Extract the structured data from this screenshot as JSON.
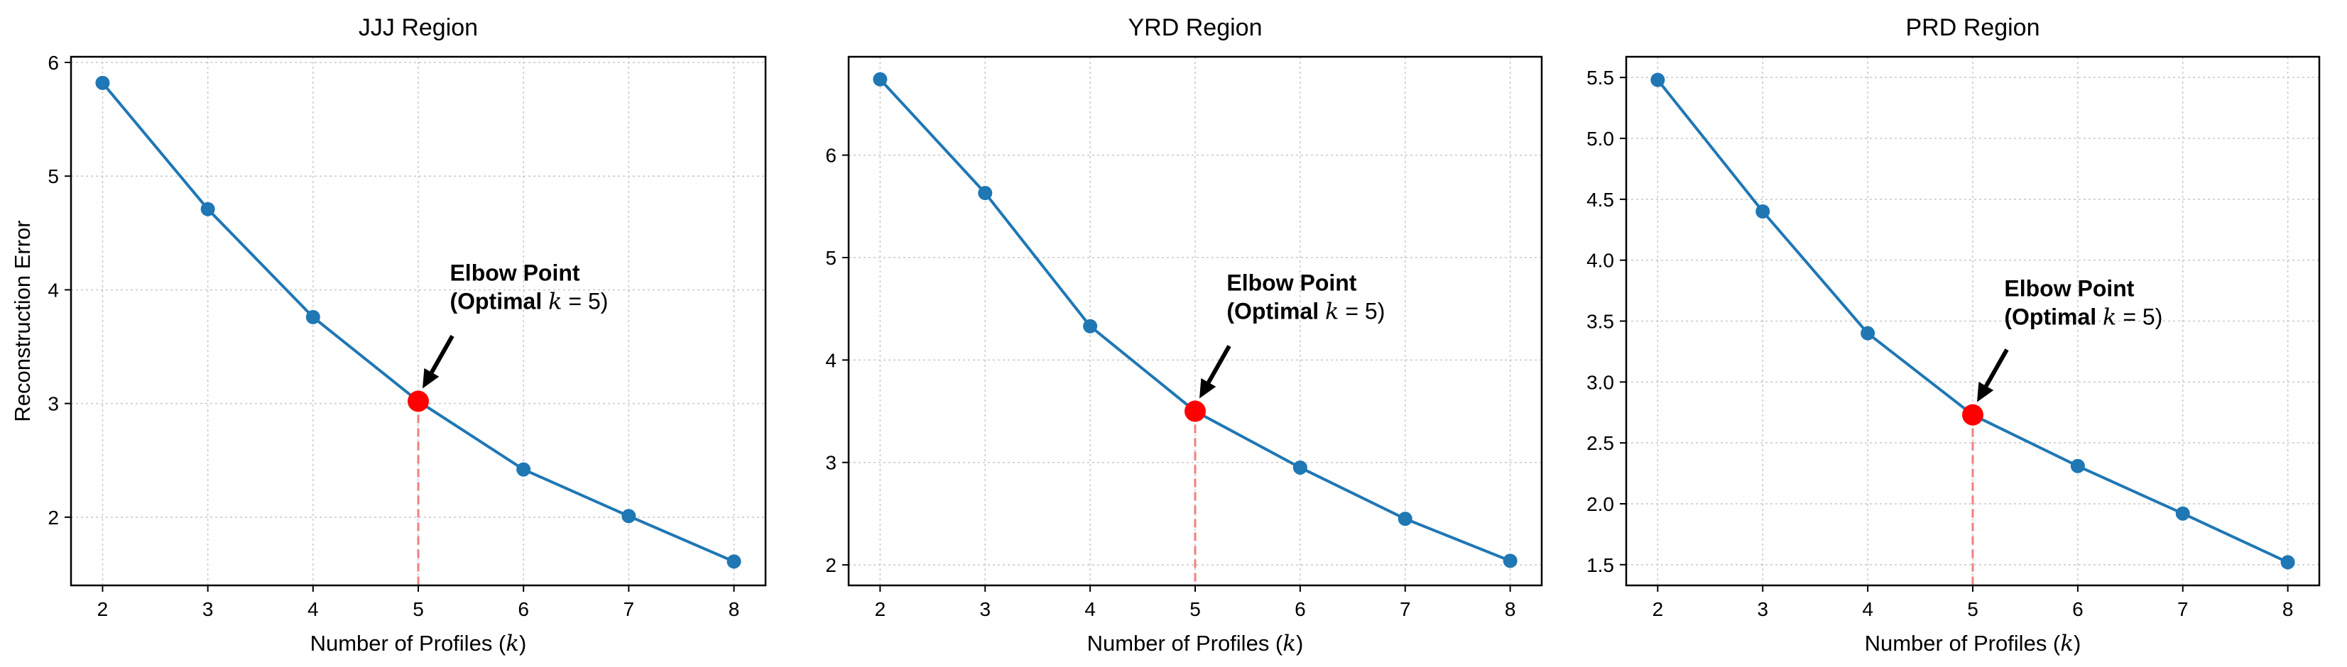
{
  "chart_data": [
    {
      "type": "line",
      "title": "JJJ Region",
      "xlabel_text": "Number of Profiles (",
      "xlabel_var": "k",
      "xlabel_close": ")",
      "ylabel": "Reconstruction Error",
      "x": [
        2,
        3,
        4,
        5,
        6,
        7,
        8
      ],
      "y": [
        5.82,
        4.71,
        3.76,
        3.02,
        2.42,
        2.01,
        1.61
      ],
      "xlim": [
        1.7,
        8.3
      ],
      "ylim": [
        1.4,
        6.05
      ],
      "yticks": [
        2,
        3,
        4,
        5,
        6
      ],
      "ytick_labels": [
        "2",
        "3",
        "4",
        "5",
        "6"
      ],
      "xticks": [
        2,
        3,
        4,
        5,
        6,
        7,
        8
      ],
      "xtick_labels": [
        "2",
        "3",
        "4",
        "5",
        "6",
        "7",
        "8"
      ],
      "elbow": {
        "x": 5,
        "y": 3.02
      },
      "annotation": {
        "line1": "Elbow Point",
        "line2_text": "(Optimal ",
        "line2_var": "k",
        "line2_eq": " = 5)",
        "text_x": 5.3,
        "text_y": 3.83
      },
      "grid": true
    },
    {
      "type": "line",
      "title": "YRD Region",
      "xlabel_text": "Number of Profiles (",
      "xlabel_var": "k",
      "xlabel_close": ")",
      "ylabel": "",
      "x": [
        2,
        3,
        4,
        5,
        6,
        7,
        8
      ],
      "y": [
        6.74,
        5.63,
        4.33,
        3.5,
        2.95,
        2.45,
        2.04
      ],
      "xlim": [
        1.7,
        8.3
      ],
      "ylim": [
        1.8,
        6.96
      ],
      "yticks": [
        2,
        3,
        4,
        5,
        6
      ],
      "ytick_labels": [
        "2",
        "3",
        "4",
        "5",
        "6"
      ],
      "xticks": [
        2,
        3,
        4,
        5,
        6,
        7,
        8
      ],
      "xtick_labels": [
        "2",
        "3",
        "4",
        "5",
        "6",
        "7",
        "8"
      ],
      "elbow": {
        "x": 5,
        "y": 3.5
      },
      "annotation": {
        "line1": "Elbow Point",
        "line2_text": "(Optimal ",
        "line2_var": "k",
        "line2_eq": " = 5)",
        "text_x": 5.3,
        "text_y": 4.4
      },
      "grid": true
    },
    {
      "type": "line",
      "title": "PRD Region",
      "xlabel_text": "Number of Profiles (",
      "xlabel_var": "k",
      "xlabel_close": ")",
      "ylabel": "",
      "x": [
        2,
        3,
        4,
        5,
        6,
        7,
        8
      ],
      "y": [
        5.48,
        4.4,
        3.4,
        2.73,
        2.31,
        1.92,
        1.52
      ],
      "xlim": [
        1.7,
        8.3
      ],
      "ylim": [
        1.33,
        5.67
      ],
      "yticks": [
        1.5,
        2.0,
        2.5,
        3.0,
        3.5,
        4.0,
        4.5,
        5.0,
        5.5
      ],
      "ytick_labels": [
        "1.5",
        "2.0",
        "2.5",
        "3.0",
        "3.5",
        "4.0",
        "4.5",
        "5.0",
        "5.5"
      ],
      "xticks": [
        2,
        3,
        4,
        5,
        6,
        7,
        8
      ],
      "xtick_labels": [
        "2",
        "3",
        "4",
        "5",
        "6",
        "7",
        "8"
      ],
      "elbow": {
        "x": 5,
        "y": 2.73
      },
      "annotation": {
        "line1": "Elbow Point",
        "line2_text": "(Optimal ",
        "line2_var": "k",
        "line2_eq": " = 5)",
        "text_x": 5.3,
        "text_y": 3.47
      },
      "grid": true
    }
  ],
  "colors": {
    "line": "#1f77b4",
    "elbow": "#ff0000",
    "dashed": "#f08080",
    "grid": "#c8c8c8",
    "axes": "#000000"
  }
}
